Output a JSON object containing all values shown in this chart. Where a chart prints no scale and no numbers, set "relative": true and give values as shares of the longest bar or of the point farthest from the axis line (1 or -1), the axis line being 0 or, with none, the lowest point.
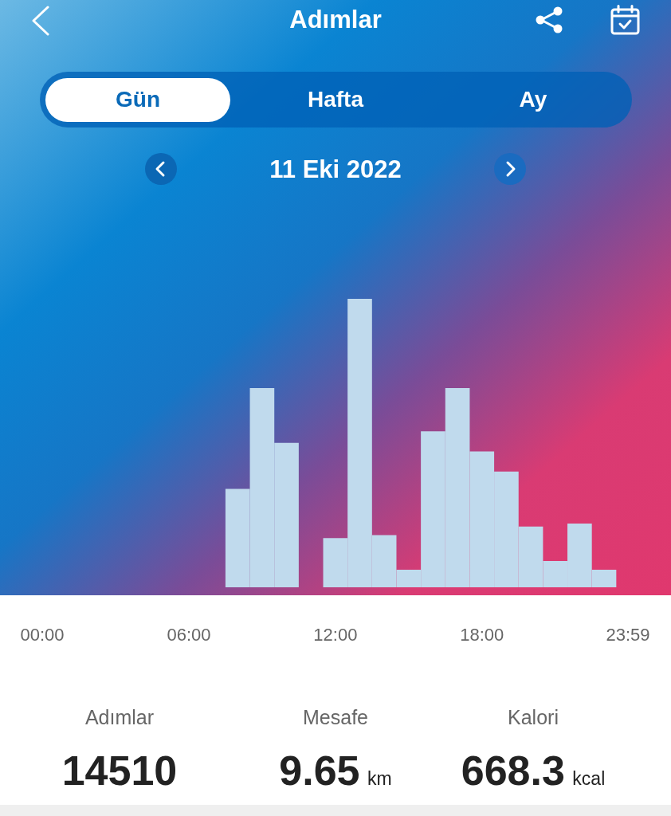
{
  "chart_data": {
    "type": "bar",
    "title": "Adımlar",
    "subtitle": "11 Eki 2022",
    "x": [
      8,
      9,
      10,
      12,
      13,
      14,
      15,
      16,
      17,
      18,
      19,
      20,
      21,
      22,
      23
    ],
    "values": [
      0.34,
      0.69,
      0.5,
      0.17,
      1,
      0.18,
      0.06,
      0.54,
      0.69,
      0.47,
      0.4,
      0.21,
      0.09,
      0.22,
      0.06
    ],
    "color": "#c0daed",
    "relative": true,
    "xlim": [
      -1.73,
      25.74
    ],
    "xticks": [
      {
        "value": 0,
        "label": "00:00"
      },
      {
        "value": 6,
        "label": "06:00"
      },
      {
        "value": 12,
        "label": "12:00"
      },
      {
        "value": 18,
        "label": "18:00"
      },
      {
        "value": 23.98,
        "label": "23:59"
      }
    ],
    "annotations": [
      "Gün",
      "Hafta",
      "Ay",
      "Adımlar",
      "14510",
      "Mesafe",
      "9.65 km",
      "Kalori",
      "668.3 kcal"
    ]
  }
}
